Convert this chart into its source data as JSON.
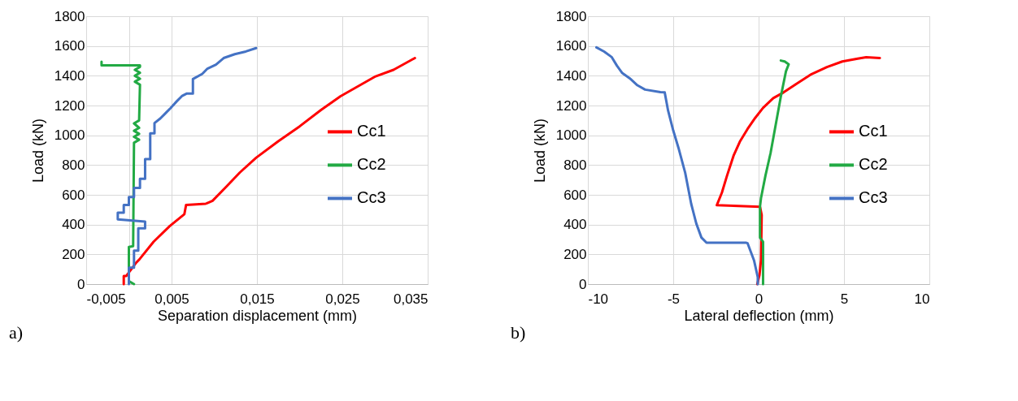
{
  "chart_data": [
    {
      "type": "line",
      "xlabel": "Separation displacement (mm)",
      "ylabel": "Load (kN)",
      "annotations": [
        "a)"
      ],
      "xlim": [
        -0.005,
        0.035
      ],
      "xticks": [
        {
          "value": -0.005,
          "label": "-0,005"
        },
        {
          "value": 0,
          "label": null
        },
        {
          "value": 0.005,
          "label": "0,005"
        },
        {
          "value": 0.015,
          "label": "0,015"
        },
        {
          "value": 0.025,
          "label": "0,025"
        },
        {
          "value": 0.035,
          "label": "0,035"
        }
      ],
      "ylim": [
        0,
        1800
      ],
      "yticks": [
        0,
        200,
        400,
        600,
        800,
        1000,
        1200,
        1400,
        1600,
        1800
      ],
      "grid": true,
      "legend": "right",
      "series": [
        {
          "name": "Cc1",
          "color": "#ff0000",
          "x": [
            -0.0006,
            -0.0006,
            -0.0003,
            0.0008,
            0.0013,
            0.0029,
            0.0048,
            0.0065,
            0.0067,
            0.0075,
            0.009,
            0.0098,
            0.0115,
            0.013,
            0.0149,
            0.0175,
            0.02,
            0.0225,
            0.0248,
            0.0289,
            0.031,
            0.0335
          ],
          "values": [
            0,
            55,
            55,
            140,
            171,
            285,
            391,
            470,
            532,
            535,
            540,
            560,
            660,
            750,
            849,
            960,
            1060,
            1170,
            1263,
            1396,
            1440,
            1519
          ]
        },
        {
          "name": "Cc2",
          "color": "#22aa44",
          "x": [
            0.0006,
            0,
            0,
            0.0005,
            0.0006,
            0.0012,
            0.0006,
            0.0012,
            0.0006,
            0.0012,
            0.0006,
            0.0012,
            0.0013,
            0.0007,
            0.0013,
            0.0007,
            0.0013,
            0.0007,
            0.0013,
            0.0013,
            -0.0032,
            -0.0032
          ],
          "values": [
            0,
            20,
            250,
            255,
            950,
            970,
            990,
            1010,
            1030,
            1050,
            1080,
            1100,
            1340,
            1360,
            1380,
            1400,
            1420,
            1440,
            1460,
            1470,
            1470,
            1495
          ]
        },
        {
          "name": "Cc3",
          "color": "#4472c4",
          "x": [
            0,
            0,
            0.0006,
            0.0006,
            0.0011,
            0.0011,
            0.0019,
            0.0019,
            -0.0013,
            -0.0013,
            -0.0006,
            -0.0006,
            0,
            0,
            0.0006,
            0.0006,
            0.0013,
            0.0013,
            0.0019,
            0.0019,
            0.0025,
            0.0025,
            0.003,
            0.003,
            0.0037,
            0.0043,
            0.0049,
            0.0056,
            0.0062,
            0.0068,
            0.0075,
            0.0075,
            0.0086,
            0.0092,
            0.0102,
            0.0111,
            0.0124,
            0.0137,
            0.0149
          ],
          "values": [
            0,
            110,
            110,
            225,
            225,
            375,
            375,
            420,
            435,
            480,
            480,
            532,
            532,
            585,
            585,
            647,
            647,
            708,
            708,
            840,
            840,
            1013,
            1013,
            1082,
            1114,
            1149,
            1184,
            1228,
            1263,
            1281,
            1281,
            1378,
            1413,
            1448,
            1475,
            1519,
            1545,
            1563,
            1586
          ]
        }
      ]
    },
    {
      "type": "line",
      "xlabel": "Lateral deflection (mm)",
      "ylabel": "Load (kN)",
      "annotations": [
        "b)"
      ],
      "xlim": [
        -10,
        10
      ],
      "xticks": [
        -10,
        -5,
        0,
        5,
        10
      ],
      "ylim": [
        0,
        1800
      ],
      "yticks": [
        0,
        200,
        400,
        600,
        800,
        1000,
        1200,
        1400,
        1600,
        1800
      ],
      "grid": true,
      "legend": "right",
      "series": [
        {
          "name": "Cc1",
          "color": "#ff0000",
          "x": [
            -0.08,
            0.05,
            0.14,
            0.18,
            0.08,
            -2.45,
            -2.15,
            -1.85,
            -1.47,
            -1.1,
            -0.65,
            -0.2,
            0.26,
            0.86,
            1.46,
            2.2,
            3.1,
            4.0,
            4.9,
            5.8,
            6.3,
            7.1
          ],
          "values": [
            0,
            60,
            160,
            465,
            520,
            530,
            615,
            729,
            862,
            957,
            1042,
            1117,
            1184,
            1250,
            1288,
            1345,
            1411,
            1458,
            1496,
            1515,
            1525,
            1519
          ]
        },
        {
          "name": "Cc2",
          "color": "#22aa44",
          "x": [
            0.26,
            0.26,
            0.08,
            0.08,
            0.14,
            0.4,
            0.7,
            1.0,
            1.3,
            1.6,
            1.76,
            1.53,
            1.3
          ],
          "values": [
            0,
            284,
            313,
            520,
            578,
            729,
            881,
            1070,
            1260,
            1430,
            1477,
            1496,
            1502
          ]
        },
        {
          "name": "Cc3",
          "color": "#4472c4",
          "x": [
            -0.05,
            -0.05,
            -0.27,
            -0.65,
            -0.72,
            -3.05,
            -3.35,
            -3.65,
            -3.95,
            -4.3,
            -4.7,
            -5.0,
            -5.3,
            -5.5,
            -5.75,
            -6.65,
            -7.1,
            -7.55,
            -8.0,
            -8.3,
            -8.6,
            -9.05,
            -9.5
          ],
          "values": [
            0,
            47,
            160,
            275,
            278,
            278,
            313,
            407,
            540,
            748,
            918,
            1032,
            1165,
            1288,
            1290,
            1307,
            1336,
            1383,
            1420,
            1468,
            1525,
            1563,
            1591
          ]
        }
      ]
    }
  ]
}
